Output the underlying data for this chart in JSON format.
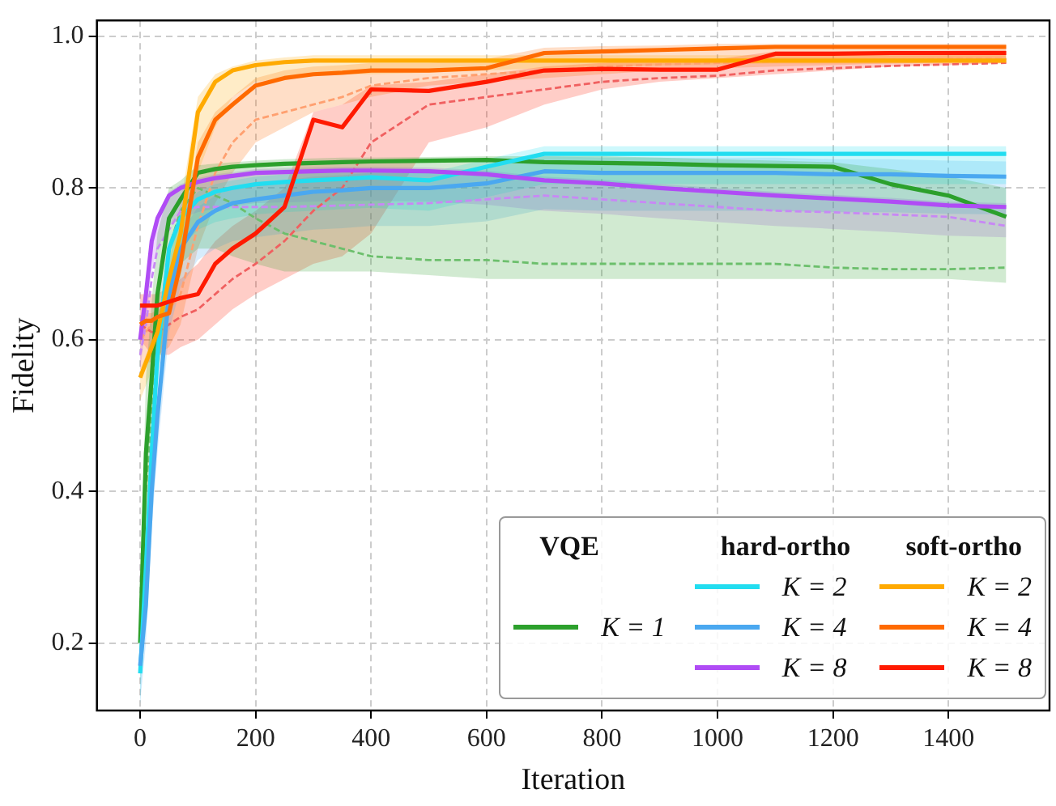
{
  "chart_data": {
    "type": "line",
    "xlabel": "Iteration",
    "ylabel": "Fidelity",
    "x": [
      0,
      10,
      20,
      30,
      50,
      70,
      100,
      130,
      160,
      200,
      250,
      300,
      350,
      400,
      500,
      600,
      700,
      800,
      900,
      1000,
      1100,
      1200,
      1300,
      1400,
      1500
    ],
    "xlim": [
      -75,
      1575
    ],
    "xticks": [
      0,
      200,
      400,
      600,
      800,
      1000,
      1200,
      1400
    ],
    "ylim": [
      0.111,
      1.021
    ],
    "yticks": [
      0.2,
      0.4,
      0.6,
      0.8,
      {
        "value": 1,
        "label": "1.0"
      }
    ],
    "grid": true,
    "legend": "bottom right",
    "legend_title": [
      "VQE",
      "hard-ortho",
      "soft-ortho"
    ],
    "series": [
      {
        "name": "K = 1",
        "color": "#2ca02c",
        "values": [
          0.2,
          0.45,
          0.55,
          0.66,
          0.76,
          0.785,
          0.82,
          0.825,
          0.828,
          0.83,
          0.832,
          0.833,
          0.834,
          0.835,
          0.836,
          0.837,
          0.834,
          0.833,
          0.832,
          0.83,
          0.829,
          0.828,
          0.805,
          0.79,
          0.762
        ],
        "lower": [
          0.15,
          0.35,
          0.45,
          0.55,
          0.65,
          0.7,
          0.72,
          0.72,
          0.71,
          0.7,
          0.69,
          0.69,
          0.69,
          0.69,
          0.685,
          0.68,
          0.68,
          0.68,
          0.68,
          0.68,
          0.68,
          0.68,
          0.68,
          0.68,
          0.675
        ],
        "upper": [
          0.25,
          0.55,
          0.65,
          0.74,
          0.8,
          0.81,
          0.83,
          0.832,
          0.834,
          0.836,
          0.838,
          0.839,
          0.84,
          0.84,
          0.841,
          0.842,
          0.842,
          0.842,
          0.84,
          0.838,
          0.836,
          0.834,
          0.825,
          0.815,
          0.8
        ]
      },
      {
        "name": "K = 2",
        "color": "#22ddf0",
        "values": [
          0.16,
          0.3,
          0.45,
          0.58,
          0.72,
          0.76,
          0.785,
          0.795,
          0.8,
          0.805,
          0.808,
          0.81,
          0.812,
          0.814,
          0.81,
          0.828,
          0.845,
          0.845,
          0.845,
          0.845,
          0.845,
          0.845,
          0.845,
          0.845,
          0.845
        ],
        "lower": [
          0.12,
          0.26,
          0.41,
          0.54,
          0.68,
          0.72,
          0.745,
          0.755,
          0.76,
          0.765,
          0.768,
          0.77,
          0.772,
          0.774,
          0.77,
          0.788,
          0.805,
          0.805,
          0.805,
          0.805,
          0.805,
          0.805,
          0.805,
          0.805,
          0.805
        ],
        "upper": [
          0.17,
          0.31,
          0.46,
          0.59,
          0.73,
          0.77,
          0.795,
          0.805,
          0.81,
          0.815,
          0.818,
          0.82,
          0.822,
          0.824,
          0.82,
          0.838,
          0.855,
          0.855,
          0.855,
          0.855,
          0.855,
          0.855,
          0.855,
          0.855,
          0.855
        ]
      },
      {
        "name": "K = 4",
        "color": "#4aa8f0",
        "values": [
          0.17,
          0.25,
          0.4,
          0.5,
          0.66,
          0.72,
          0.755,
          0.77,
          0.78,
          0.785,
          0.79,
          0.795,
          0.797,
          0.8,
          0.8,
          0.806,
          0.822,
          0.82,
          0.82,
          0.82,
          0.82,
          0.818,
          0.818,
          0.816,
          0.815
        ],
        "lower": [
          0.12,
          0.2,
          0.35,
          0.45,
          0.61,
          0.67,
          0.705,
          0.72,
          0.73,
          0.735,
          0.74,
          0.745,
          0.747,
          0.75,
          0.75,
          0.756,
          0.772,
          0.77,
          0.77,
          0.77,
          0.77,
          0.768,
          0.768,
          0.766,
          0.765
        ],
        "upper": [
          0.19,
          0.27,
          0.42,
          0.52,
          0.68,
          0.74,
          0.775,
          0.79,
          0.8,
          0.805,
          0.81,
          0.815,
          0.817,
          0.82,
          0.82,
          0.826,
          0.842,
          0.84,
          0.84,
          0.84,
          0.84,
          0.838,
          0.838,
          0.836,
          0.835
        ]
      },
      {
        "name": "K = 8",
        "color": "#b04cf5",
        "values": [
          0.6,
          0.66,
          0.73,
          0.76,
          0.79,
          0.8,
          0.808,
          0.813,
          0.816,
          0.82,
          0.821,
          0.822,
          0.823,
          0.823,
          0.822,
          0.818,
          0.81,
          0.806,
          0.8,
          0.795,
          0.79,
          0.786,
          0.782,
          0.777,
          0.775
        ],
        "lower": [
          0.56,
          0.62,
          0.69,
          0.72,
          0.75,
          0.76,
          0.768,
          0.773,
          0.776,
          0.78,
          0.781,
          0.782,
          0.783,
          0.783,
          0.782,
          0.778,
          0.77,
          0.766,
          0.76,
          0.755,
          0.75,
          0.746,
          0.742,
          0.737,
          0.735
        ],
        "upper": [
          0.605,
          0.665,
          0.735,
          0.765,
          0.795,
          0.805,
          0.813,
          0.818,
          0.821,
          0.825,
          0.826,
          0.827,
          0.828,
          0.828,
          0.827,
          0.823,
          0.815,
          0.811,
          0.805,
          0.8,
          0.795,
          0.791,
          0.787,
          0.782,
          0.78
        ]
      },
      {
        "name": "K = 2",
        "color": "#ffaa00",
        "values": [
          0.55,
          0.57,
          0.59,
          0.61,
          0.68,
          0.74,
          0.9,
          0.94,
          0.955,
          0.962,
          0.966,
          0.968,
          0.968,
          0.968,
          0.968,
          0.968,
          0.968,
          0.968,
          0.968,
          0.968,
          0.968,
          0.968,
          0.968,
          0.968,
          0.968
        ],
        "lower": [
          0.52,
          0.54,
          0.56,
          0.58,
          0.64,
          0.68,
          0.82,
          0.88,
          0.92,
          0.94,
          0.945,
          0.95,
          0.95,
          0.95,
          0.952,
          0.955,
          0.958,
          0.96,
          0.962,
          0.963,
          0.964,
          0.964,
          0.964,
          0.964,
          0.964
        ],
        "upper": [
          0.56,
          0.58,
          0.6,
          0.62,
          0.7,
          0.78,
          0.92,
          0.95,
          0.96,
          0.968,
          0.972,
          0.975,
          0.975,
          0.975,
          0.975,
          0.975,
          0.975,
          0.975,
          0.975,
          0.975,
          0.975,
          0.975,
          0.975,
          0.975,
          0.975
        ]
      },
      {
        "name": "K = 4",
        "color": "#ff6a00",
        "values": [
          0.62,
          0.625,
          0.625,
          0.63,
          0.635,
          0.7,
          0.84,
          0.89,
          0.91,
          0.935,
          0.945,
          0.95,
          0.952,
          0.955,
          0.955,
          0.958,
          0.978,
          0.98,
          0.982,
          0.984,
          0.986,
          0.986,
          0.986,
          0.986,
          0.986
        ],
        "lower": [
          0.56,
          0.57,
          0.57,
          0.58,
          0.59,
          0.62,
          0.72,
          0.78,
          0.82,
          0.86,
          0.88,
          0.9,
          0.91,
          0.92,
          0.935,
          0.94,
          0.945,
          0.95,
          0.955,
          0.958,
          0.96,
          0.962,
          0.964,
          0.966,
          0.967
        ],
        "upper": [
          0.63,
          0.635,
          0.635,
          0.64,
          0.645,
          0.72,
          0.86,
          0.9,
          0.92,
          0.945,
          0.955,
          0.96,
          0.962,
          0.965,
          0.965,
          0.97,
          0.985,
          0.987,
          0.988,
          0.99,
          0.99,
          0.99,
          0.99,
          0.99,
          0.99
        ]
      },
      {
        "name": "K = 8",
        "color": "#ff1a00",
        "values": [
          0.645,
          0.645,
          0.645,
          0.645,
          0.65,
          0.655,
          0.66,
          0.7,
          0.72,
          0.74,
          0.775,
          0.89,
          0.88,
          0.93,
          0.928,
          0.94,
          0.955,
          0.957,
          0.956,
          0.956,
          0.977,
          0.977,
          0.978,
          0.978,
          0.978
        ],
        "lower": [
          0.6,
          0.59,
          0.58,
          0.58,
          0.58,
          0.59,
          0.6,
          0.62,
          0.64,
          0.66,
          0.68,
          0.7,
          0.71,
          0.74,
          0.86,
          0.88,
          0.91,
          0.93,
          0.94,
          0.945,
          0.95,
          0.955,
          0.96,
          0.962,
          0.965
        ],
        "upper": [
          0.66,
          0.66,
          0.66,
          0.66,
          0.67,
          0.68,
          0.7,
          0.73,
          0.75,
          0.77,
          0.8,
          0.9,
          0.91,
          0.935,
          0.94,
          0.95,
          0.96,
          0.965,
          0.97,
          0.97,
          0.98,
          0.98,
          0.98,
          0.981,
          0.982
        ]
      },
      {
        "color": "#6cbf6c",
        "line_style": "dashed",
        "values": [
          null,
          0.4,
          0.5,
          0.6,
          0.72,
          0.77,
          0.8,
          0.79,
          0.78,
          0.76,
          0.74,
          0.73,
          0.72,
          0.71,
          0.705,
          0.705,
          0.7,
          0.7,
          0.7,
          0.7,
          0.7,
          0.695,
          0.693,
          0.693,
          0.695
        ]
      },
      {
        "color": "#c888f5",
        "line_style": "dashed",
        "values": [
          0.58,
          0.62,
          0.68,
          0.72,
          0.745,
          0.77,
          0.775,
          0.775,
          0.775,
          0.775,
          0.775,
          0.776,
          0.777,
          0.778,
          0.78,
          0.785,
          0.79,
          0.785,
          0.78,
          0.775,
          0.77,
          0.768,
          0.765,
          0.762,
          0.75
        ]
      },
      {
        "color": "#ffa070",
        "line_style": "dashed",
        "values": [
          0.6,
          0.61,
          0.62,
          0.63,
          0.64,
          0.66,
          0.75,
          0.82,
          0.86,
          0.89,
          0.9,
          0.91,
          0.92,
          0.935,
          0.945,
          0.95,
          0.955,
          0.96,
          0.963,
          0.965,
          0.967,
          0.968,
          0.969,
          0.97,
          0.97
        ]
      },
      {
        "color": "#f06060",
        "line_style": "dashed",
        "values": [
          0.62,
          0.615,
          0.61,
          0.61,
          0.62,
          0.63,
          0.64,
          0.66,
          0.68,
          0.7,
          0.73,
          0.77,
          0.8,
          0.86,
          0.91,
          0.92,
          0.93,
          0.94,
          0.945,
          0.948,
          0.955,
          0.958,
          0.961,
          0.963,
          0.965
        ]
      }
    ]
  }
}
